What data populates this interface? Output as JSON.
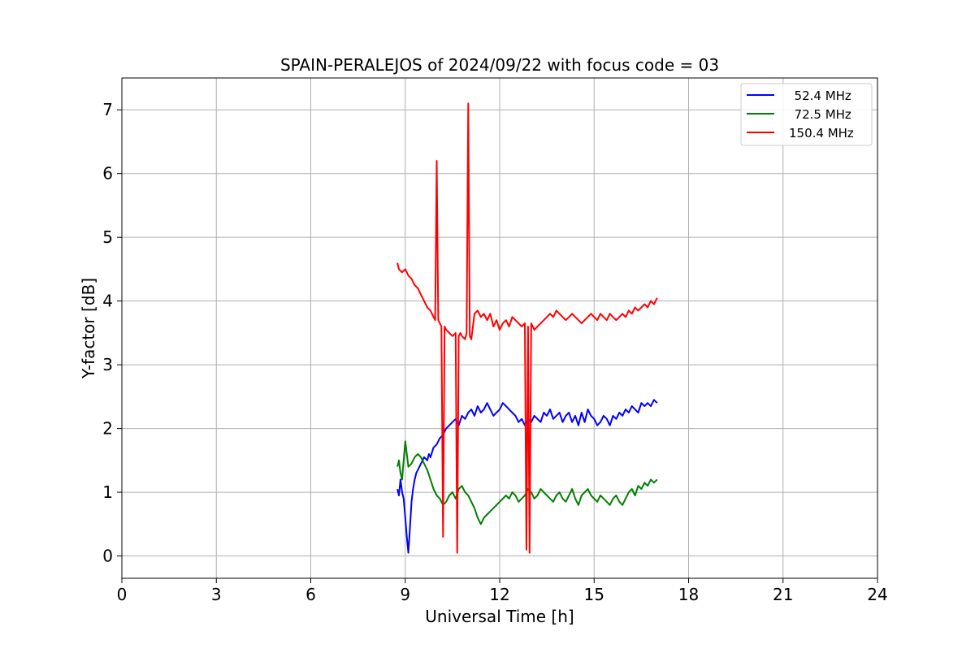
{
  "chart_data": {
    "type": "line",
    "title": "SPAIN-PERALEJOS of 2024/09/22 with focus code = 03",
    "xlabel": "Universal Time [h]",
    "ylabel": "Y-factor [dB]",
    "xlim": [
      0,
      24
    ],
    "ylim": [
      -0.35,
      7.5
    ],
    "x_ticks": [
      "0",
      "3",
      "6",
      "9",
      "12",
      "15",
      "18",
      "21",
      "24"
    ],
    "y_ticks": [
      "0",
      "1",
      "2",
      "3",
      "4",
      "5",
      "6",
      "7"
    ],
    "grid": true,
    "legend_position": "top-right",
    "series": [
      {
        "name": "  52.4 MHz",
        "color": "#0000ff",
        "x": [
          8.75,
          8.8,
          8.85,
          8.9,
          8.95,
          9.0,
          9.05,
          9.1,
          9.15,
          9.2,
          9.25,
          9.3,
          9.35,
          9.4,
          9.5,
          9.6,
          9.7,
          9.75,
          9.8,
          9.9,
          10.0,
          10.1,
          10.2,
          10.3,
          10.4,
          10.5,
          10.6,
          10.7,
          10.8,
          10.9,
          11.0,
          11.1,
          11.2,
          11.3,
          11.4,
          11.5,
          11.6,
          11.7,
          11.8,
          11.9,
          12.0,
          12.1,
          12.2,
          12.3,
          12.4,
          12.5,
          12.6,
          12.7,
          12.8,
          12.9,
          13.0,
          13.1,
          13.2,
          13.3,
          13.4,
          13.5,
          13.6,
          13.7,
          13.8,
          13.9,
          14.0,
          14.1,
          14.2,
          14.3,
          14.4,
          14.5,
          14.6,
          14.7,
          14.8,
          14.9,
          15.0,
          15.1,
          15.2,
          15.3,
          15.4,
          15.5,
          15.6,
          15.7,
          15.8,
          15.9,
          16.0,
          16.1,
          16.2,
          16.3,
          16.4,
          16.5,
          16.6,
          16.7,
          16.8,
          16.9,
          17.0
        ],
        "y": [
          1.05,
          0.95,
          1.2,
          1.0,
          0.9,
          0.6,
          0.3,
          0.05,
          0.45,
          0.85,
          1.05,
          1.2,
          1.3,
          1.35,
          1.45,
          1.55,
          1.5,
          1.6,
          1.55,
          1.7,
          1.75,
          1.85,
          1.9,
          2.0,
          2.05,
          2.1,
          2.15,
          2.05,
          2.2,
          2.15,
          2.25,
          2.3,
          2.2,
          2.35,
          2.25,
          2.3,
          2.4,
          2.3,
          2.2,
          2.25,
          2.3,
          2.4,
          2.35,
          2.3,
          2.25,
          2.2,
          2.1,
          2.15,
          2.05,
          2.15,
          2.1,
          2.2,
          2.15,
          2.1,
          2.25,
          2.2,
          2.3,
          2.15,
          2.2,
          2.25,
          2.1,
          2.2,
          2.25,
          2.1,
          2.2,
          2.05,
          2.25,
          2.1,
          2.3,
          2.2,
          2.15,
          2.05,
          2.1,
          2.2,
          2.15,
          2.05,
          2.2,
          2.15,
          2.25,
          2.2,
          2.3,
          2.25,
          2.35,
          2.3,
          2.25,
          2.4,
          2.35,
          2.4,
          2.35,
          2.45,
          2.4
        ]
      },
      {
        "name": "  72.5 MHz",
        "color": "#008000",
        "x": [
          8.75,
          8.8,
          8.85,
          8.9,
          8.95,
          9.0,
          9.05,
          9.1,
          9.2,
          9.3,
          9.4,
          9.5,
          9.6,
          9.7,
          9.8,
          9.9,
          10.0,
          10.1,
          10.2,
          10.3,
          10.4,
          10.5,
          10.6,
          10.7,
          10.8,
          10.9,
          11.0,
          11.1,
          11.2,
          11.3,
          11.4,
          11.5,
          11.6,
          11.7,
          11.8,
          11.9,
          12.0,
          12.1,
          12.2,
          12.3,
          12.4,
          12.5,
          12.6,
          12.7,
          12.8,
          12.9,
          13.0,
          13.1,
          13.2,
          13.3,
          13.4,
          13.5,
          13.6,
          13.7,
          13.8,
          13.9,
          14.0,
          14.1,
          14.2,
          14.3,
          14.4,
          14.5,
          14.6,
          14.7,
          14.8,
          14.9,
          15.0,
          15.1,
          15.2,
          15.3,
          15.4,
          15.5,
          15.6,
          15.7,
          15.8,
          15.9,
          16.0,
          16.1,
          16.2,
          16.3,
          16.4,
          16.5,
          16.6,
          16.7,
          16.8,
          16.9,
          17.0
        ],
        "y": [
          1.4,
          1.5,
          1.3,
          1.2,
          1.5,
          1.8,
          1.6,
          1.4,
          1.45,
          1.55,
          1.6,
          1.55,
          1.45,
          1.35,
          1.2,
          1.05,
          0.95,
          0.9,
          0.8,
          0.85,
          0.95,
          1.0,
          0.9,
          1.05,
          1.1,
          1.0,
          0.95,
          0.85,
          0.75,
          0.6,
          0.5,
          0.6,
          0.65,
          0.7,
          0.75,
          0.8,
          0.85,
          0.9,
          0.95,
          0.9,
          1.0,
          0.95,
          0.85,
          0.9,
          0.95,
          1.05,
          1.0,
          0.9,
          0.95,
          1.05,
          1.0,
          0.95,
          0.9,
          0.85,
          0.95,
          1.0,
          0.9,
          0.85,
          0.95,
          1.05,
          0.9,
          0.8,
          0.95,
          1.0,
          1.05,
          0.95,
          0.9,
          0.85,
          0.95,
          0.9,
          0.85,
          0.8,
          0.9,
          0.95,
          0.85,
          0.8,
          0.9,
          1.0,
          1.05,
          0.95,
          1.1,
          1.05,
          1.15,
          1.1,
          1.2,
          1.15,
          1.2
        ]
      },
      {
        "name": "150.4 MHz",
        "color": "#ff0000",
        "x": [
          8.75,
          8.8,
          8.9,
          9.0,
          9.1,
          9.2,
          9.3,
          9.4,
          9.5,
          9.6,
          9.7,
          9.8,
          9.9,
          9.95,
          10.0,
          10.05,
          10.1,
          10.15,
          10.2,
          10.25,
          10.3,
          10.4,
          10.5,
          10.6,
          10.65,
          10.7,
          10.75,
          10.8,
          10.9,
          10.95,
          11.0,
          11.05,
          11.1,
          11.2,
          11.3,
          11.4,
          11.5,
          11.6,
          11.7,
          11.8,
          11.9,
          12.0,
          12.1,
          12.2,
          12.3,
          12.4,
          12.5,
          12.6,
          12.7,
          12.8,
          12.85,
          12.9,
          12.95,
          13.0,
          13.05,
          13.1,
          13.2,
          13.3,
          13.4,
          13.5,
          13.6,
          13.7,
          13.8,
          13.9,
          14.0,
          14.1,
          14.2,
          14.3,
          14.4,
          14.5,
          14.6,
          14.7,
          14.8,
          14.9,
          15.0,
          15.1,
          15.2,
          15.3,
          15.4,
          15.5,
          15.6,
          15.7,
          15.8,
          15.9,
          16.0,
          16.1,
          16.2,
          16.3,
          16.4,
          16.5,
          16.6,
          16.7,
          16.8,
          16.9,
          17.0
        ],
        "y": [
          4.6,
          4.5,
          4.45,
          4.5,
          4.4,
          4.35,
          4.25,
          4.2,
          4.1,
          4.0,
          3.9,
          3.85,
          3.75,
          3.7,
          6.2,
          3.7,
          3.65,
          3.6,
          0.3,
          3.6,
          3.55,
          3.5,
          3.45,
          3.5,
          0.05,
          3.45,
          3.5,
          3.45,
          3.4,
          3.5,
          7.1,
          3.45,
          3.4,
          3.8,
          3.85,
          3.75,
          3.8,
          3.7,
          3.8,
          3.6,
          3.7,
          3.55,
          3.65,
          3.7,
          3.6,
          3.75,
          3.7,
          3.65,
          3.6,
          3.65,
          0.1,
          3.6,
          0.05,
          3.65,
          3.6,
          3.55,
          3.6,
          3.65,
          3.7,
          3.75,
          3.8,
          3.75,
          3.85,
          3.8,
          3.75,
          3.7,
          3.75,
          3.8,
          3.75,
          3.7,
          3.65,
          3.7,
          3.75,
          3.8,
          3.75,
          3.7,
          3.8,
          3.75,
          3.7,
          3.8,
          3.75,
          3.7,
          3.75,
          3.8,
          3.75,
          3.85,
          3.8,
          3.9,
          3.85,
          3.9,
          3.95,
          3.9,
          4.0,
          3.95,
          4.05
        ]
      }
    ]
  }
}
